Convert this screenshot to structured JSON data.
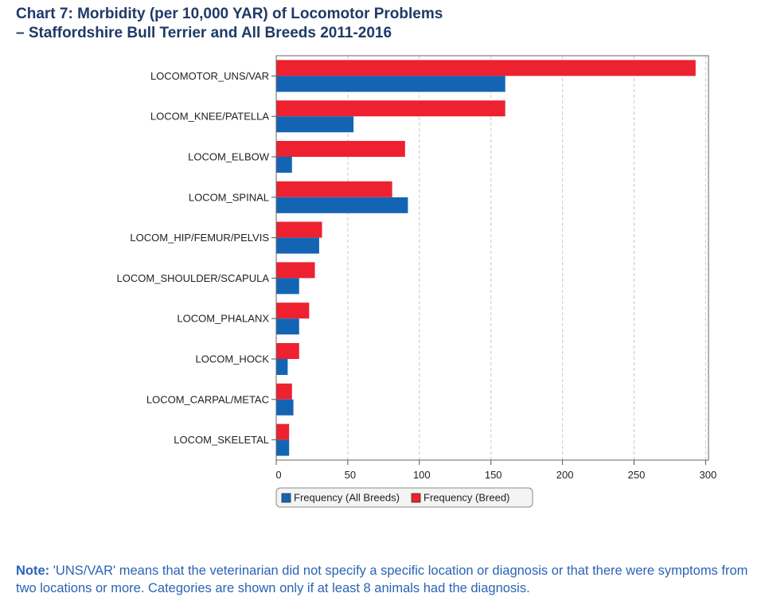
{
  "title": {
    "line1": "Chart 7: Morbidity (per 10,000 YAR) of Locomotor Problems",
    "line2": " –  Staffordshire Bull Terrier and All Breeds 2011-2016"
  },
  "colors": {
    "all_breeds": "#1464b4",
    "breed": "#ee2130",
    "title": "#1f3a68",
    "note": "#2b63b5"
  },
  "chart_data": {
    "type": "bar",
    "orientation": "horizontal",
    "categories": [
      "LOCOMOTOR_UNS/VAR",
      "LOCOM_KNEE/PATELLA",
      "LOCOM_ELBOW",
      "LOCOM_SPINAL",
      "LOCOM_HIP/FEMUR/PELVIS",
      "LOCOM_SHOULDER/SCAPULA",
      "LOCOM_PHALANX",
      "LOCOM_HOCK",
      "LOCOM_CARPAL/METAC",
      "LOCOM_SKELETAL"
    ],
    "series": [
      {
        "name": "Frequency (Breed)",
        "values": [
          293,
          160,
          90,
          81,
          32,
          27,
          23,
          16,
          11,
          9
        ]
      },
      {
        "name": "Frequency (All Breeds)",
        "values": [
          160,
          54,
          11,
          92,
          30,
          16,
          16,
          8,
          12,
          9
        ]
      }
    ],
    "xlim": [
      0,
      302
    ],
    "xticks": [
      0,
      50,
      100,
      150,
      200,
      250,
      300
    ],
    "xtick_labels": [
      "0",
      "50",
      "100",
      "150",
      "200",
      "250",
      "300"
    ],
    "grid": true,
    "legend_position": "bottom",
    "legend": [
      "Frequency (All Breeds)",
      "Frequency (Breed)"
    ]
  },
  "note": {
    "label": "Note:",
    "text": " 'UNS/VAR' means that the veterinarian did not specify a specific location or diagnosis or that there were symptoms from two locations or more. Categories are shown only if at least 8 animals had the diagnosis."
  }
}
